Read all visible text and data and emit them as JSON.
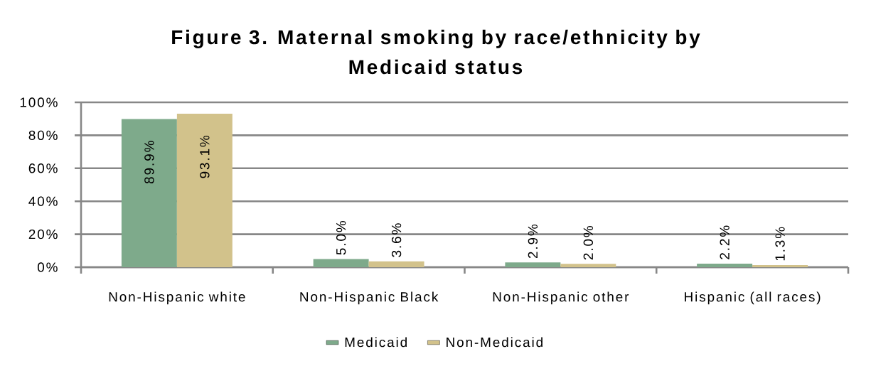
{
  "chart_data": {
    "type": "bar",
    "title": "Figure 3. Maternal smoking by race/ethnicity by Medicaid status",
    "categories": [
      "Non-Hispanic white",
      "Non-Hispanic Black",
      "Non-Hispanic other",
      "Hispanic (all races)"
    ],
    "series": [
      {
        "name": "Medicaid",
        "color": "#7eaa8b",
        "values": [
          89.9,
          5.0,
          2.9,
          2.2
        ],
        "value_labels": [
          "89.9%",
          "5.0%",
          "2.9%",
          "2.2%"
        ]
      },
      {
        "name": "Non-Medicaid",
        "color": "#d2c28b",
        "values": [
          93.1,
          3.6,
          2.0,
          1.3
        ],
        "value_labels": [
          "93.1%",
          "3.6%",
          "2.0%",
          "1.3%"
        ]
      }
    ],
    "ylim": [
      0,
      100
    ],
    "yticks": [
      {
        "value": 0,
        "label": "0%"
      },
      {
        "value": 20,
        "label": "20%"
      },
      {
        "value": 40,
        "label": "40%"
      },
      {
        "value": 60,
        "label": "60%"
      },
      {
        "value": 80,
        "label": "80%"
      },
      {
        "value": 100,
        "label": "100%"
      }
    ],
    "grid": "y",
    "legend": "bottom"
  }
}
